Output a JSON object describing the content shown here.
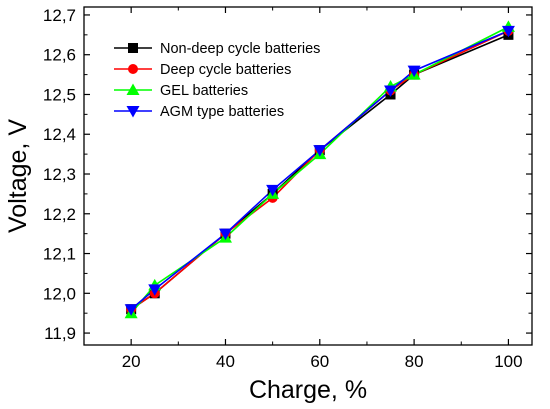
{
  "chart_data": {
    "type": "line",
    "title": "",
    "xlabel": "Charge, %",
    "ylabel": "Voltage, V",
    "xlim": [
      10,
      105
    ],
    "ylim": [
      11.87,
      12.72
    ],
    "x_ticks": [
      20,
      40,
      60,
      80,
      100
    ],
    "x_tick_labels": [
      "20",
      "40",
      "60",
      "80",
      "100"
    ],
    "y_ticks": [
      11.9,
      12.0,
      12.1,
      12.2,
      12.3,
      12.4,
      12.5,
      12.6,
      12.7
    ],
    "y_tick_labels": [
      "11,9",
      "12,0",
      "12,1",
      "12,2",
      "12,3",
      "12,4",
      "12,5",
      "12,6",
      "12,7"
    ],
    "grid": false,
    "legend_position": "top-left",
    "x": [
      20,
      25,
      40,
      50,
      60,
      75,
      80,
      100
    ],
    "series": [
      {
        "name": "Non-deep cycle batteries",
        "color": "#000000",
        "marker": "square",
        "values": [
          11.96,
          12.0,
          12.15,
          12.25,
          12.36,
          12.5,
          12.55,
          12.65
        ]
      },
      {
        "name": "Deep cycle batteries",
        "color": "#ff0000",
        "marker": "circle",
        "values": [
          11.96,
          12.0,
          12.15,
          12.24,
          12.36,
          12.51,
          12.55,
          12.66
        ]
      },
      {
        "name": "GEL batteries",
        "color": "#00ff00",
        "marker": "triangle-up",
        "values": [
          11.95,
          12.02,
          12.14,
          12.25,
          12.35,
          12.52,
          12.55,
          12.67
        ]
      },
      {
        "name": "AGM type batteries",
        "color": "#0000ff",
        "marker": "triangle-down",
        "values": [
          11.96,
          12.01,
          12.15,
          12.26,
          12.36,
          12.51,
          12.56,
          12.66
        ]
      }
    ]
  }
}
